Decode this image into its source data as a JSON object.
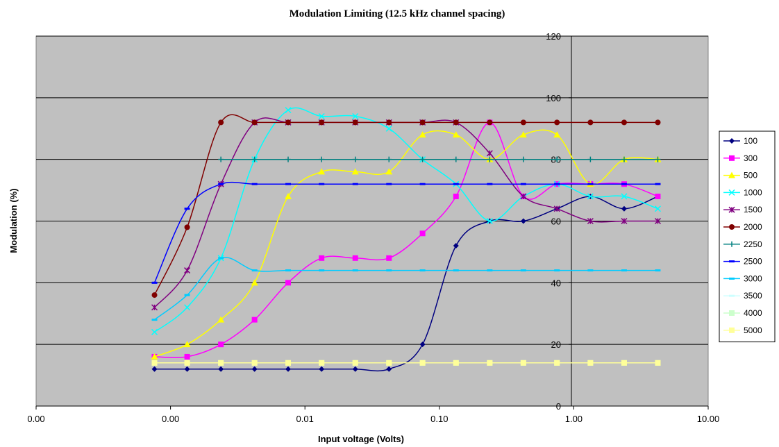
{
  "chart_data": {
    "type": "line",
    "title": "Modulation Limiting (12.5 kHz channel spacing)",
    "xlabel": "Input voltage (Volts)",
    "ylabel": "Modulation (%)",
    "x_scale": "log",
    "xlim": [
      0.0001,
      10
    ],
    "ylim": [
      0,
      120
    ],
    "x_tick_values": [
      0.0001,
      0.001,
      0.01,
      0.1,
      1,
      10
    ],
    "x_tick_labels": [
      "0.00",
      "0.00",
      "0.01",
      "0.10",
      "1.00",
      "10.00"
    ],
    "y_ticks": [
      0,
      20,
      40,
      60,
      80,
      100,
      120
    ],
    "grid": "horizontal major gridlines",
    "plot_background": "#c0c0c0",
    "legend_position": "right",
    "x": [
      0.00076,
      0.00133,
      0.00237,
      0.00422,
      0.0075,
      0.0133,
      0.0237,
      0.0422,
      0.075,
      0.133,
      0.237,
      0.422,
      0.75,
      1.33,
      2.37,
      4.22
    ],
    "series": [
      {
        "name": "100",
        "color": "#000080",
        "marker": "diamond",
        "values": [
          12,
          12,
          12,
          12,
          12,
          12,
          12,
          12,
          20,
          52,
          60,
          60,
          64,
          68,
          64,
          68
        ]
      },
      {
        "name": "300",
        "color": "#ff00ff",
        "marker": "square",
        "values": [
          16,
          16,
          20,
          28,
          40,
          48,
          48,
          48,
          56,
          68,
          92,
          68,
          72,
          72,
          72,
          68
        ]
      },
      {
        "name": "500",
        "color": "#ffff00",
        "marker": "triangle",
        "values": [
          16,
          20,
          28,
          40,
          68,
          76,
          76,
          76,
          88,
          88,
          80,
          88,
          88,
          72,
          80,
          80
        ]
      },
      {
        "name": "1000",
        "color": "#00ffff",
        "marker": "x",
        "values": [
          24,
          32,
          48,
          80,
          96,
          94,
          94,
          90,
          80,
          72,
          60,
          68,
          72,
          68,
          68,
          64
        ]
      },
      {
        "name": "1500",
        "color": "#800080",
        "marker": "star",
        "values": [
          32,
          44,
          72,
          92,
          92,
          92,
          92,
          92,
          92,
          92,
          82,
          68,
          64,
          60,
          60,
          60
        ]
      },
      {
        "name": "2000",
        "color": "#800000",
        "marker": "circle",
        "values": [
          36,
          58,
          92,
          92,
          92,
          92,
          92,
          92,
          92,
          92,
          92,
          92,
          92,
          92,
          92,
          92
        ]
      },
      {
        "name": "2250",
        "color": "#008080",
        "marker": "plus",
        "values": [
          null,
          null,
          80,
          80,
          80,
          80,
          80,
          80,
          80,
          80,
          80,
          80,
          80,
          80,
          80,
          80
        ]
      },
      {
        "name": "2500",
        "color": "#0000ff",
        "marker": "dash",
        "values": [
          40,
          64,
          72,
          72,
          72,
          72,
          72,
          72,
          72,
          72,
          72,
          72,
          72,
          72,
          72,
          72
        ]
      },
      {
        "name": "3000",
        "color": "#00ccff",
        "marker": "dash",
        "values": [
          28,
          36,
          48,
          44,
          44,
          44,
          44,
          44,
          44,
          44,
          44,
          44,
          44,
          44,
          44,
          44
        ]
      },
      {
        "name": "3500",
        "color": "#ccffff",
        "marker": "dash",
        "values": [
          14,
          14,
          14,
          14,
          14,
          14,
          14,
          14,
          14,
          14,
          14,
          14,
          14,
          14,
          14,
          14
        ]
      },
      {
        "name": "4000",
        "color": "#ccffcc",
        "marker": "square",
        "values": [
          14,
          14,
          14,
          14,
          14,
          14,
          14,
          14,
          14,
          14,
          14,
          14,
          14,
          14,
          14,
          14
        ]
      },
      {
        "name": "5000",
        "color": "#ffff99",
        "marker": "square",
        "values": [
          14,
          14,
          14,
          14,
          14,
          14,
          14,
          14,
          14,
          14,
          14,
          14,
          14,
          14,
          14,
          14
        ]
      }
    ]
  }
}
